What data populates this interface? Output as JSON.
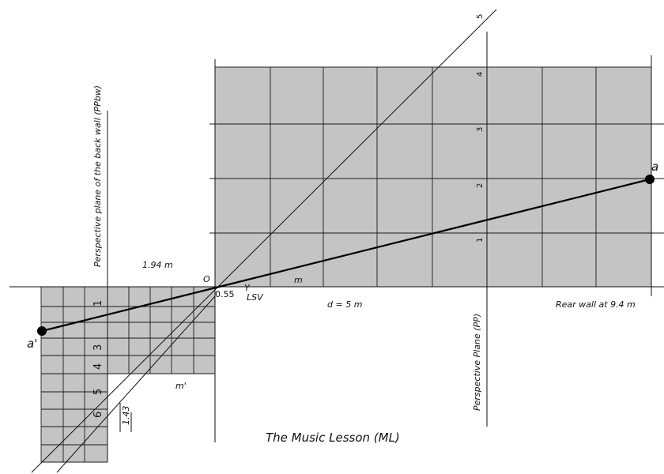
{
  "header_text": "",
  "labels": {
    "back_wall_plane": "Perspective plane of the back wall (PPbw)",
    "perspective_plane": "Perspective Plane (PP)",
    "width_label": "1.94 m",
    "origin": "O",
    "origin_value": "0.55",
    "lsv": "LSV",
    "lsv_marker": "Y",
    "m": "m",
    "m_prime": "m'",
    "distance": "d = 5 m",
    "rear_wall": "Rear wall at 9.4 m",
    "small_offset": "1.43",
    "point_a": "a",
    "point_a_prime": "a'",
    "title": "The Music Lesson (ML)"
  },
  "right_grid_numbers": [
    "1",
    "2",
    "3",
    "4",
    "5"
  ],
  "left_grid_numbers": [
    "1",
    "3",
    "4",
    "5",
    "6"
  ],
  "colors": {
    "shade": "#c4c4c4",
    "line": "#111111"
  }
}
